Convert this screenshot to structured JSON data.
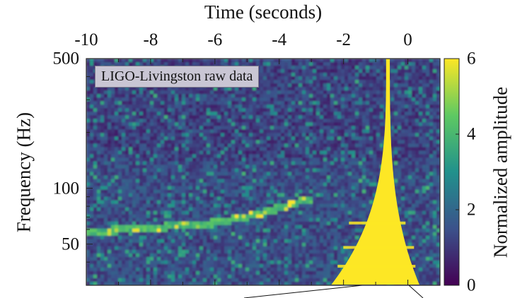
{
  "chart_data": {
    "type": "heatmap",
    "title": "",
    "annotation": "LIGO-Livingston raw data",
    "xlabel": "Time (seconds)",
    "ylabel": "Frequency (Hz)",
    "colorbar_label": "Normalized amplitude",
    "x_scale": "linear",
    "y_scale": "log",
    "xlim": [
      -10,
      1
    ],
    "ylim": [
      30,
      500
    ],
    "color_range": [
      0,
      6
    ],
    "x_ticks": [
      -10,
      -8,
      -6,
      -4,
      -2,
      0
    ],
    "x_tick_labels": [
      "-10",
      "-8",
      "-6",
      "-4",
      "-2",
      "0"
    ],
    "y_ticks": [
      50,
      100,
      500
    ],
    "y_tick_labels": [
      "50",
      "100",
      "500"
    ],
    "colorbar_ticks": [
      0,
      2,
      4,
      6
    ],
    "colorbar_tick_labels": [
      "0",
      "2",
      "4",
      "6"
    ],
    "colormap": [
      "#440154",
      "#3b528b",
      "#21918c",
      "#5ec962",
      "#fde725"
    ],
    "features": {
      "chirp_track": {
        "description": "faint rising frequency track",
        "points": [
          [
            -10,
            58
          ],
          [
            -8,
            61
          ],
          [
            -6,
            65
          ],
          [
            -5,
            70
          ],
          [
            -4,
            78
          ],
          [
            -3,
            88
          ]
        ],
        "amplitude": 3.0
      },
      "merger_peak": {
        "description": "bright saturated merger signal",
        "time": -0.6,
        "amplitude": 6
      }
    }
  }
}
